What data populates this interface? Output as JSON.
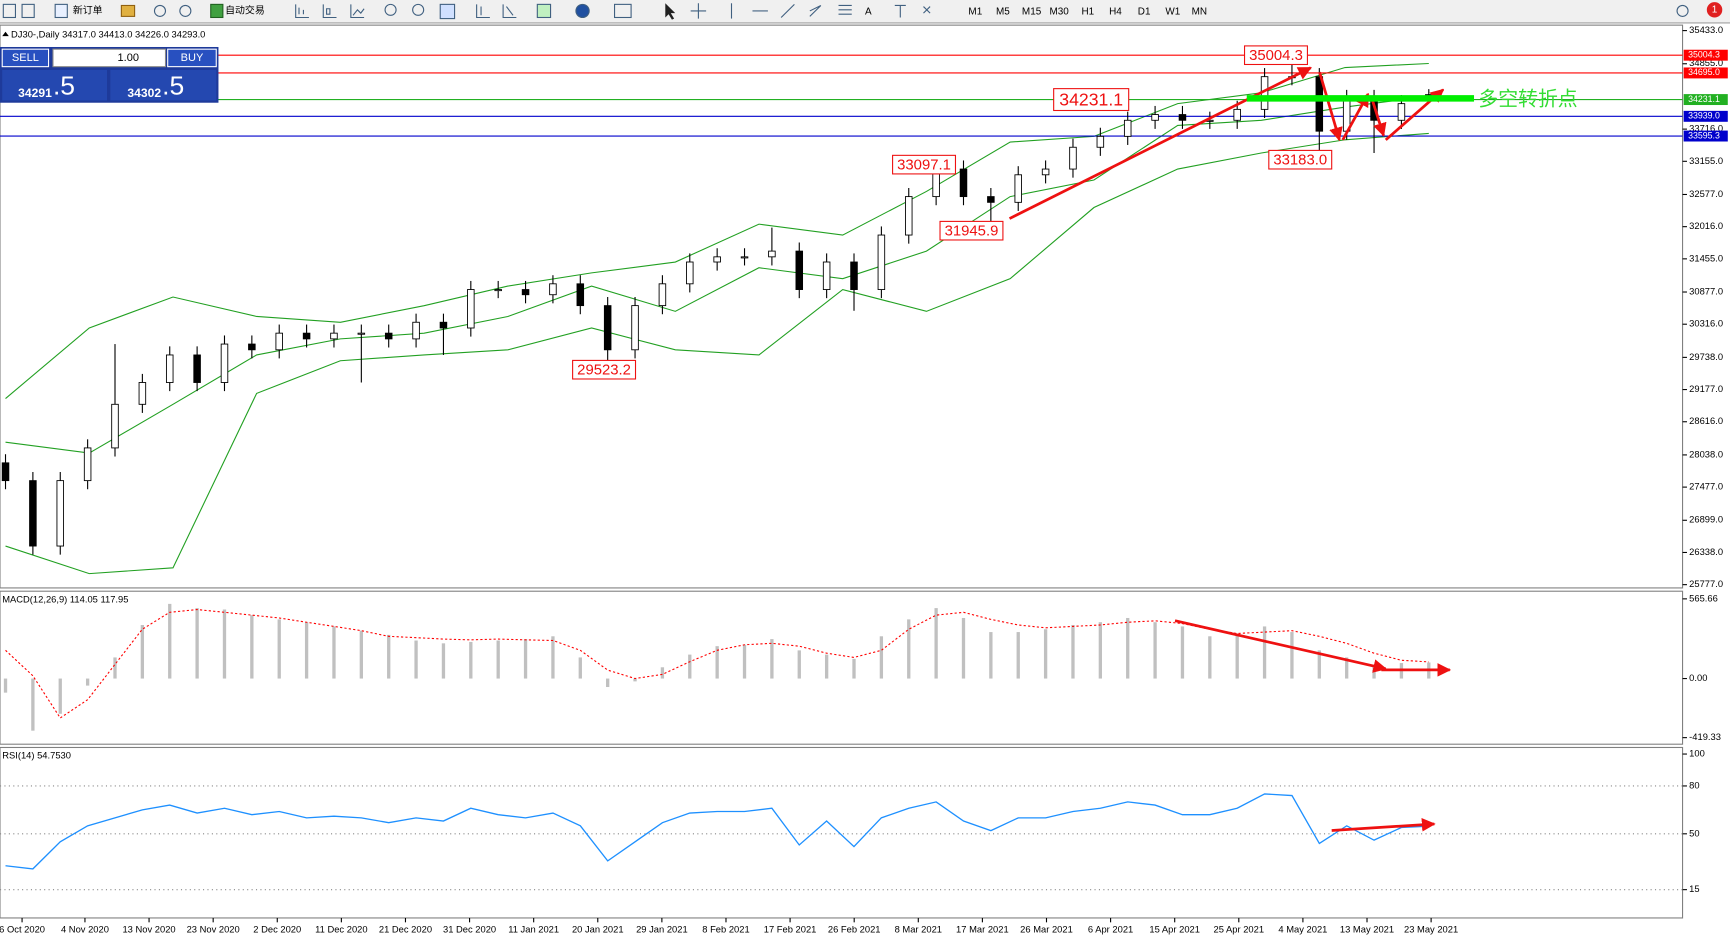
{
  "toolbar": {
    "new_order": "新订单",
    "auto_trading": "自动交易",
    "timeframes": [
      "M1",
      "M5",
      "M15",
      "M30",
      "H1",
      "H4",
      "D1",
      "W1",
      "MN"
    ],
    "notifications": "1"
  },
  "trade_panel": {
    "sell": "SELL",
    "lots": "1.00",
    "buy": "BUY",
    "bid_main": "34291",
    "bid_tail": ".5",
    "ask_main": "34302",
    "ask_tail": ".5"
  },
  "chart_data": [
    {
      "type": "candlestick",
      "title": "DJ30-,Daily  34317.0 34413.0 34226.0 34293.0",
      "open": [
        27900,
        27590,
        26450,
        27590,
        28160,
        28920,
        29300,
        29780,
        29300,
        29970,
        29870,
        30160,
        30060,
        30160,
        30160,
        30060,
        30350,
        30250,
        30920,
        30920,
        30830,
        31020,
        30640,
        29870,
        30640,
        31020,
        31400,
        31490,
        31490,
        31590,
        30920,
        31400,
        30920,
        31870,
        32540,
        33020,
        32540,
        32440,
        32920,
        33020,
        33400,
        33590,
        33870,
        33970,
        33870,
        33870,
        34060,
        34630,
        34630,
        33680,
        34250,
        33870,
        34317
      ],
      "high": [
        28050,
        27740,
        27740,
        28310,
        29970,
        29450,
        29930,
        29930,
        30120,
        30120,
        30310,
        30310,
        30310,
        30310,
        30310,
        30500,
        30500,
        31070,
        31070,
        31070,
        31170,
        31170,
        30790,
        30790,
        31170,
        31550,
        31640,
        31640,
        32000,
        31740,
        31550,
        31550,
        32020,
        32690,
        33097.1,
        33170,
        32690,
        33070,
        33170,
        33550,
        33740,
        34020,
        34120,
        34120,
        34020,
        34210,
        34780,
        35004.3,
        34780,
        34400,
        34400,
        34310,
        34413
      ],
      "low": [
        27440,
        26300,
        26300,
        27440,
        28010,
        28770,
        29150,
        29150,
        29150,
        29720,
        29720,
        29910,
        29910,
        29300,
        29910,
        29910,
        29780,
        30100,
        30770,
        30680,
        30680,
        30490,
        29523.2,
        29720,
        30490,
        30870,
        31250,
        31340,
        31340,
        30770,
        30770,
        30550,
        30770,
        31720,
        32390,
        32390,
        31945.9,
        32290,
        32770,
        32870,
        33250,
        33440,
        33720,
        33720,
        33720,
        33720,
        33910,
        34480,
        33183,
        33530,
        33300,
        33720,
        34226
      ],
      "close": [
        27590,
        26450,
        27590,
        28160,
        28920,
        29300,
        29780,
        29300,
        29970,
        29870,
        30160,
        30060,
        30160,
        30160,
        30060,
        30350,
        30250,
        30920,
        30920,
        30830,
        31020,
        30640,
        29870,
        30640,
        31020,
        31400,
        31490,
        31490,
        31590,
        30920,
        31400,
        30920,
        31870,
        32540,
        33020,
        32540,
        32440,
        32920,
        33020,
        33400,
        33590,
        33870,
        33970,
        33870,
        33870,
        34060,
        34630,
        34630,
        33680,
        34250,
        33870,
        34160,
        34293
      ],
      "up_color": "#ffffff",
      "down_color": "#000000",
      "bands": {
        "color": "#22a022",
        "values": [
          [
            29020,
            30250,
            30790,
            30450,
            30350,
            30640,
            30980,
            31210,
            31400,
            32060,
            31870,
            32630,
            33490,
            33590,
            34160,
            34350,
            34790,
            34860
          ],
          [
            28260,
            28070,
            28920,
            29780,
            30060,
            30160,
            30450,
            30980,
            30540,
            31300,
            31110,
            31590,
            32540,
            32830,
            33780,
            33870,
            34100,
            34290
          ],
          [
            26450,
            25970,
            26070,
            29110,
            29680,
            29780,
            29870,
            30250,
            29870,
            29780,
            30920,
            30540,
            31110,
            32350,
            33020,
            33300,
            33530,
            33640
          ]
        ]
      },
      "ylim": [
        25777,
        35433
      ],
      "yticks": [
        {
          "value": 35433,
          "label": "35433.0"
        },
        {
          "value": 34855,
          "label": "34855.0"
        },
        {
          "value": 33716,
          "label": "33716.0"
        },
        {
          "value": 33155,
          "label": "33155.0"
        },
        {
          "value": 32577,
          "label": "32577.0"
        },
        {
          "value": 32016,
          "label": "32016.0"
        },
        {
          "value": 31455,
          "label": "31455.0"
        },
        {
          "value": 30877,
          "label": "30877.0"
        },
        {
          "value": 30316,
          "label": "30316.0"
        },
        {
          "value": 29738,
          "label": "29738.0"
        },
        {
          "value": 29177,
          "label": "29177.0"
        },
        {
          "value": 28616,
          "label": "28616.0"
        },
        {
          "value": 28038,
          "label": "28038.0"
        },
        {
          "value": 27477,
          "label": "27477.0"
        },
        {
          "value": 26899,
          "label": "26899.0"
        },
        {
          "value": 26338,
          "label": "26338.0"
        },
        {
          "value": 25777,
          "label": "25777.0"
        }
      ],
      "levels": [
        {
          "value": 35004.3,
          "label": "35004.3",
          "color": "#ff0000"
        },
        {
          "value": 34695,
          "label": "34695.0",
          "color": "#ff0000"
        },
        {
          "value": 34231.1,
          "label": "34231.1",
          "color": "#22b022"
        },
        {
          "value": 33939,
          "label": "33939.0",
          "color": "#0000cc"
        },
        {
          "value": 33595.3,
          "label": "33595.3",
          "color": "#0000cc"
        }
      ],
      "marked_prices": [
        35004.3,
        34231.1,
        33097.1,
        31945.9,
        33183.0,
        29523.2
      ],
      "marked_price_labels": [
        "35004.3",
        "34231.1",
        "33097.1",
        "31945.9",
        "33183.0",
        "29523.2"
      ],
      "annotation": "多空转折点"
    },
    {
      "type": "macd",
      "title": "MACD(12,26,9) 114.05 117.95",
      "histogram": [
        -100,
        -370,
        -250,
        -50,
        150,
        380,
        530,
        500,
        490,
        450,
        420,
        400,
        370,
        340,
        310,
        270,
        250,
        260,
        270,
        280,
        300,
        150,
        -60,
        -20,
        80,
        170,
        230,
        240,
        280,
        200,
        170,
        140,
        300,
        420,
        500,
        430,
        330,
        330,
        350,
        380,
        400,
        430,
        400,
        370,
        300,
        310,
        370,
        330,
        200,
        150,
        100,
        110,
        114.05
      ],
      "signal": [
        200,
        20,
        -280,
        -150,
        100,
        350,
        470,
        490,
        470,
        450,
        430,
        400,
        370,
        340,
        300,
        290,
        280,
        275,
        280,
        275,
        270,
        200,
        60,
        0,
        30,
        120,
        200,
        240,
        250,
        230,
        180,
        150,
        200,
        350,
        450,
        470,
        420,
        380,
        360,
        370,
        380,
        400,
        410,
        390,
        350,
        320,
        330,
        340,
        300,
        250,
        180,
        130,
        117.95
      ],
      "histogram_color": "#c0c0c0",
      "signal_color": "#ff0000",
      "ylim": [
        -419.33,
        565.66
      ],
      "yticks": [
        {
          "value": 565.66,
          "label": "565.66"
        },
        {
          "value": 0,
          "label": "0.00"
        },
        {
          "value": -419.33,
          "label": "-419.33"
        }
      ]
    },
    {
      "type": "line",
      "title": "RSI(14) 54.7530",
      "values": [
        30,
        28,
        45,
        55,
        60,
        65,
        68,
        63,
        66,
        62,
        64,
        60,
        61,
        60,
        57,
        60,
        58,
        66,
        62,
        60,
        63,
        55,
        33,
        45,
        57,
        63,
        64,
        64,
        66,
        43,
        58,
        42,
        60,
        66,
        70,
        58,
        52,
        60,
        60,
        64,
        66,
        70,
        68,
        62,
        62,
        66,
        75,
        74,
        44,
        55,
        46,
        54,
        54.753
      ],
      "color": "#1e90ff",
      "ylim": [
        0,
        100
      ],
      "yticks": [
        100,
        80,
        50,
        15
      ],
      "grid": true,
      "xtick_labels": [
        "6 Oct 2020",
        "4 Nov 2020",
        "13 Nov 2020",
        "23 Nov 2020",
        "2 Dec 2020",
        "11 Dec 2020",
        "21 Dec 2020",
        "31 Dec 2020",
        "11 Jan 2021",
        "20 Jan 2021",
        "29 Jan 2021",
        "8 Feb 2021",
        "17 Feb 2021",
        "26 Feb 2021",
        "8 Mar 2021",
        "17 Mar 2021",
        "26 Mar 2021",
        "6 Apr 2021",
        "15 Apr 2021",
        "25 Apr 2021",
        "4 May 2021",
        "13 May 2021",
        "23 May 2021"
      ]
    }
  ]
}
